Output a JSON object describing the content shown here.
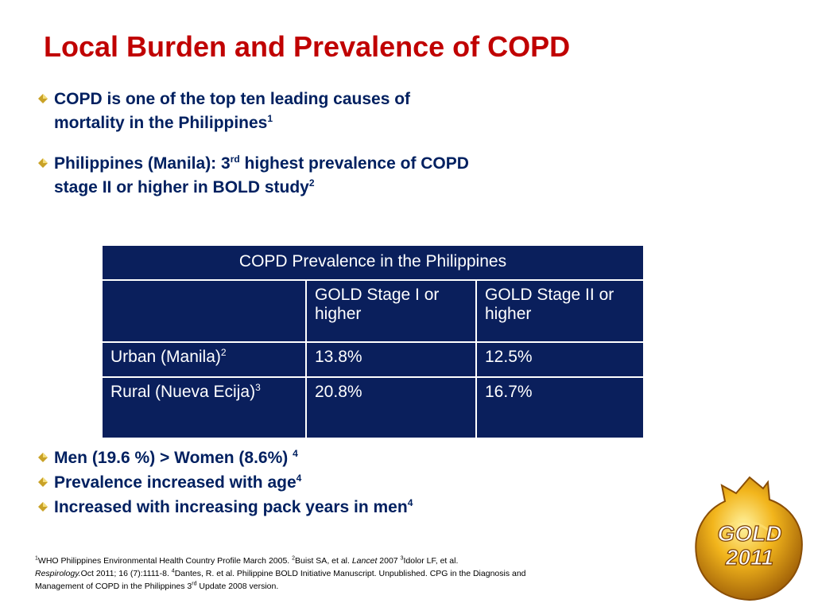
{
  "slide": {
    "title": "Local Burden and Prevalence of COPD",
    "bullets_top": [
      {
        "line1": "COPD is one of the top ten leading causes of",
        "line2": "mortality in the Philippines",
        "sup": "1"
      },
      {
        "pre": "Philippines (Manila): 3",
        "sup_rd": "rd",
        "post": " highest prevalence of COPD",
        "line2": "stage II or higher in BOLD study",
        "sup": "2"
      }
    ],
    "table": {
      "title": "COPD Prevalence in the Philippines",
      "columns": [
        "",
        "GOLD Stage I or higher",
        "GOLD Stage II or higher"
      ],
      "rows": [
        {
          "label": "Urban (Manila)",
          "sup": "2",
          "values": [
            "13.8%",
            "12.5%"
          ]
        },
        {
          "label": "Rural (Nueva Ecija)",
          "sup": "3",
          "values": [
            "20.8%",
            "16.7%"
          ]
        }
      ]
    },
    "bullets_bottom": [
      {
        "text": "Men (19.6 %) > Women (8.6%) ",
        "sup": "4"
      },
      {
        "text": "Prevalence increased with age",
        "sup": "4"
      },
      {
        "text": "Increased with increasing pack years in men",
        "sup": "4"
      }
    ],
    "references": {
      "r1_num": "1",
      "r1": "WHO Philippines Environmental Health Country Profile March 2005. ",
      "r2_num": "2",
      "r2a": "Buist SA, et al.  ",
      "r2_journal": "Lancet",
      "r2b": " 2007 ",
      "r3_num": "3",
      "r3a": "Idolor LF, et al.",
      "r3_journal": "Respirology.",
      "r3b": "Oct 2011; 16 (7):1111-8. ",
      "r4_num": "4",
      "r4": "Dantes, R. et al. Philippine BOLD Initiative Manuscript. Unpublished.  CPG in the Diagnosis and Management of COPD in the Philippines 3",
      "r4_sup": "rd",
      "r4_end": " Update 2008 version."
    },
    "logo": {
      "line1": "GOLD",
      "line2": "2011"
    }
  }
}
